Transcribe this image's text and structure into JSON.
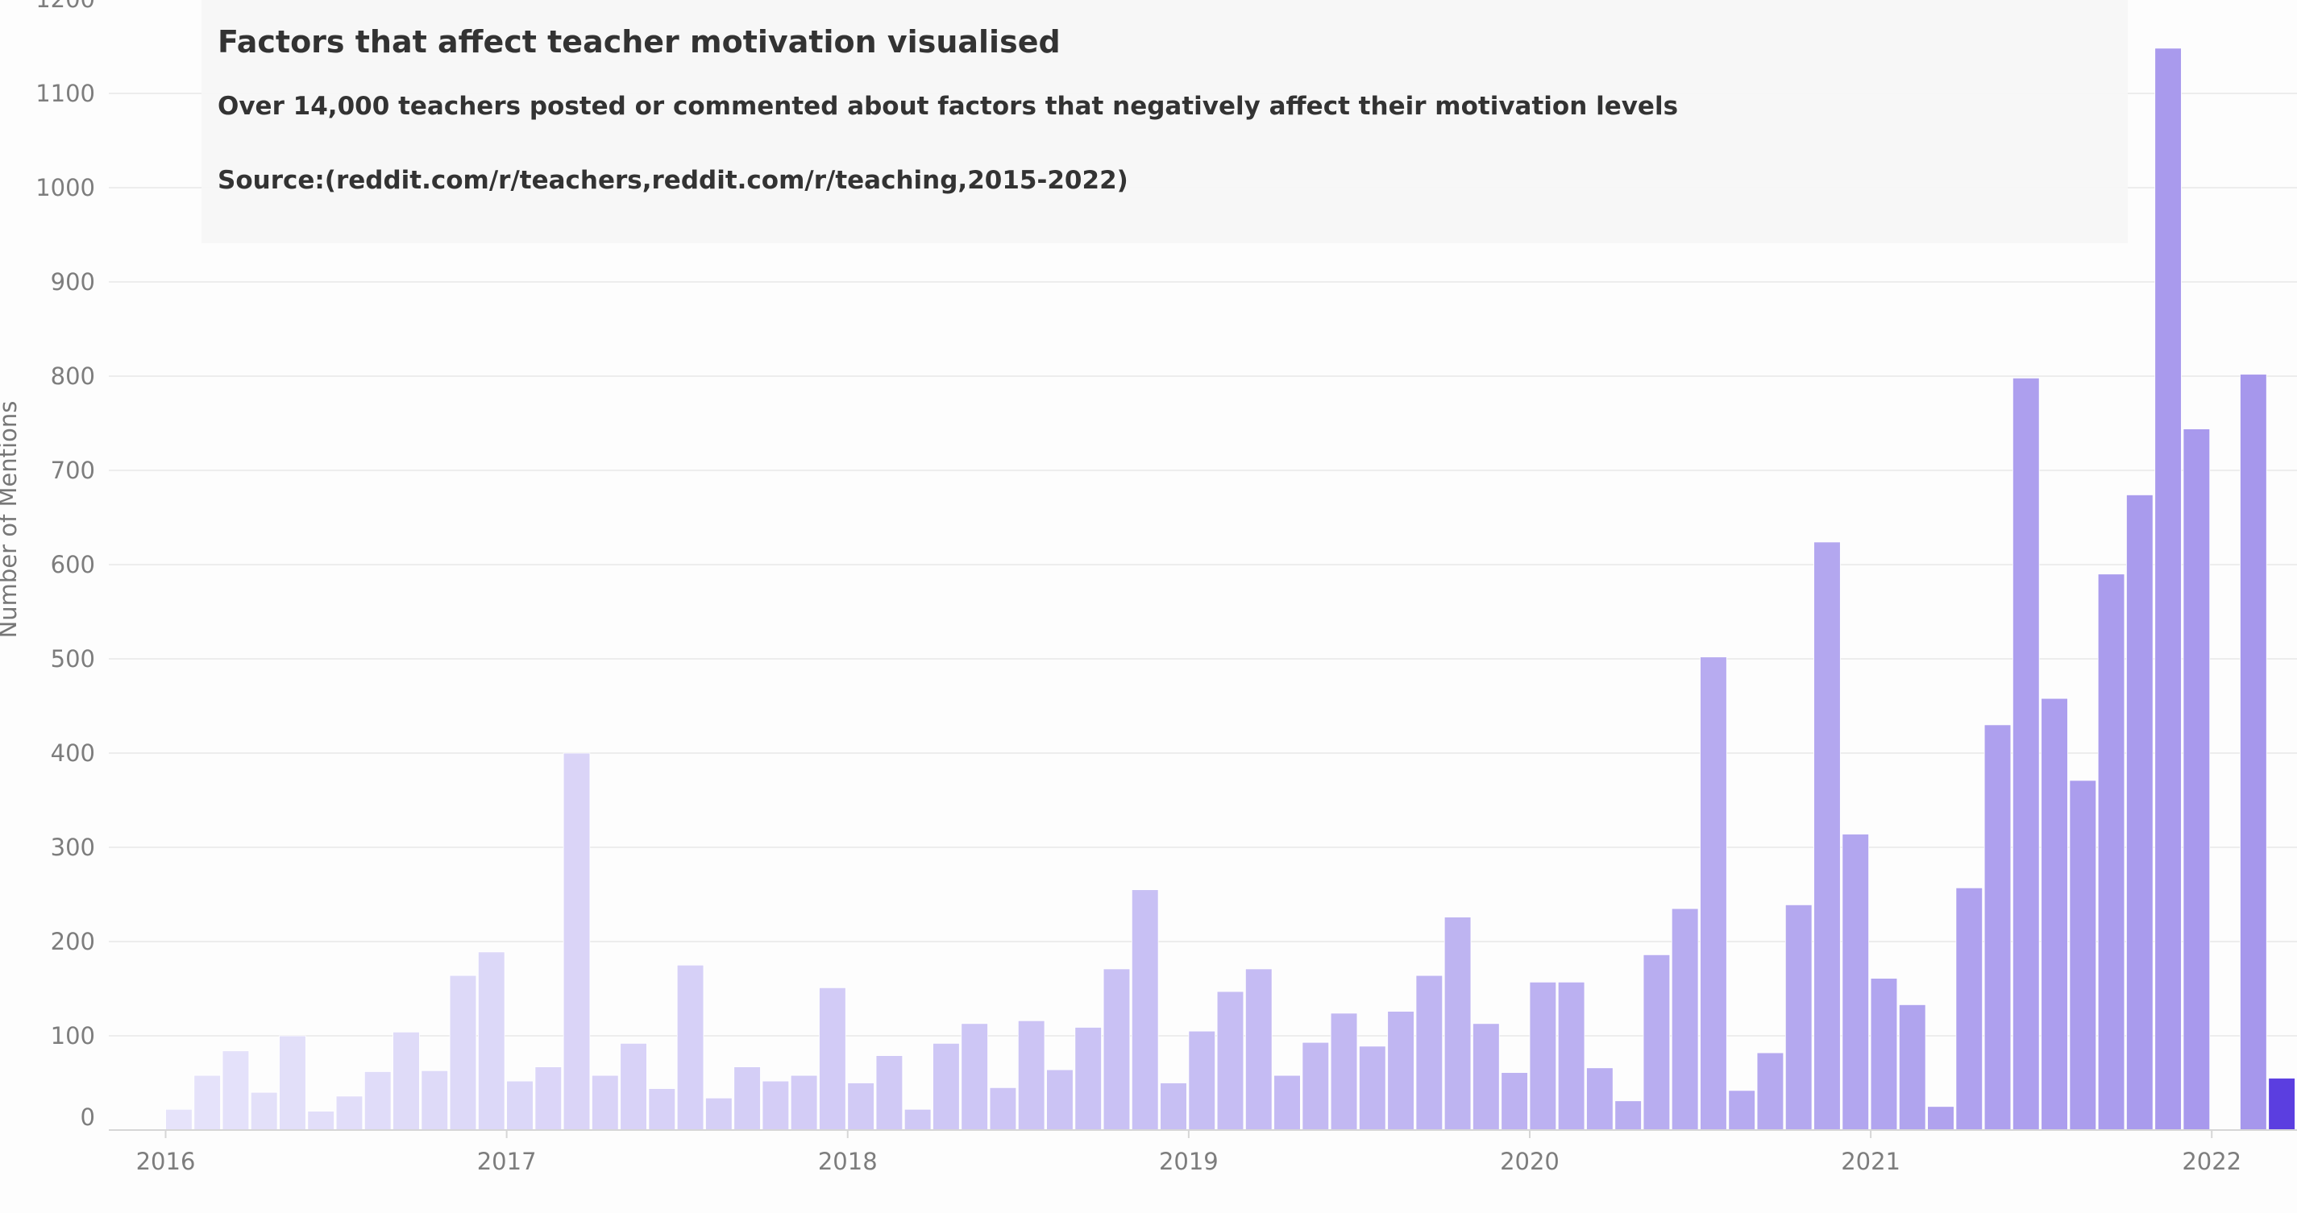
{
  "chart_data": {
    "type": "bar",
    "title": "Factors that affect teacher motivation visualised",
    "subtitle": "Over 14,000 teachers posted or commented about factors that negatively affect their motivation levels",
    "source": "Source:(reddit.com/r/teachers,reddit.com/r/teaching,2015-2022)",
    "ylabel": "Number of Mentions",
    "xlabel": "",
    "ylim": [
      0,
      1200
    ],
    "yticks": [
      0,
      100,
      200,
      300,
      400,
      500,
      600,
      700,
      800,
      900,
      1000,
      1100,
      1200
    ],
    "xticks": [
      "2016",
      "2017",
      "2018",
      "2019",
      "2020",
      "2021",
      "2022"
    ],
    "x_range": [
      "2015-11",
      "2022-04"
    ],
    "grid": true,
    "colors": {
      "bar_light": "#e6e3fa",
      "bar_dark": "#a596ec",
      "bar_highlight": "#5b3ee0",
      "grid": "#ededed",
      "axis": "#d6d6d6"
    },
    "bars": [
      {
        "month": "2016-01",
        "value": 22
      },
      {
        "month": "2016-02",
        "value": 58
      },
      {
        "month": "2016-03",
        "value": 84
      },
      {
        "month": "2016-04",
        "value": 40
      },
      {
        "month": "2016-05",
        "value": 100
      },
      {
        "month": "2016-06",
        "value": 20
      },
      {
        "month": "2016-07",
        "value": 36
      },
      {
        "month": "2016-08",
        "value": 62
      },
      {
        "month": "2016-09",
        "value": 104
      },
      {
        "month": "2016-10",
        "value": 63
      },
      {
        "month": "2016-11",
        "value": 164
      },
      {
        "month": "2016-12",
        "value": 189
      },
      {
        "month": "2017-01",
        "value": 52
      },
      {
        "month": "2017-02",
        "value": 67
      },
      {
        "month": "2017-03",
        "value": 400
      },
      {
        "month": "2017-04",
        "value": 58
      },
      {
        "month": "2017-05",
        "value": 92
      },
      {
        "month": "2017-06",
        "value": 44
      },
      {
        "month": "2017-07",
        "value": 175
      },
      {
        "month": "2017-08",
        "value": 34
      },
      {
        "month": "2017-09",
        "value": 67
      },
      {
        "month": "2017-10",
        "value": 52
      },
      {
        "month": "2017-11",
        "value": 58
      },
      {
        "month": "2017-12",
        "value": 151
      },
      {
        "month": "2018-01",
        "value": 50
      },
      {
        "month": "2018-02",
        "value": 79
      },
      {
        "month": "2018-03",
        "value": 22
      },
      {
        "month": "2018-04",
        "value": 92
      },
      {
        "month": "2018-05",
        "value": 113
      },
      {
        "month": "2018-06",
        "value": 45
      },
      {
        "month": "2018-07",
        "value": 116
      },
      {
        "month": "2018-08",
        "value": 64
      },
      {
        "month": "2018-09",
        "value": 109
      },
      {
        "month": "2018-10",
        "value": 171
      },
      {
        "month": "2018-11",
        "value": 255
      },
      {
        "month": "2018-12",
        "value": 50
      },
      {
        "month": "2019-01",
        "value": 105
      },
      {
        "month": "2019-02",
        "value": 147
      },
      {
        "month": "2019-03",
        "value": 171
      },
      {
        "month": "2019-04",
        "value": 58
      },
      {
        "month": "2019-05",
        "value": 93
      },
      {
        "month": "2019-06",
        "value": 124
      },
      {
        "month": "2019-07",
        "value": 89
      },
      {
        "month": "2019-08",
        "value": 126
      },
      {
        "month": "2019-09",
        "value": 164
      },
      {
        "month": "2019-10",
        "value": 226
      },
      {
        "month": "2019-11",
        "value": 113
      },
      {
        "month": "2019-12",
        "value": 61
      },
      {
        "month": "2020-01",
        "value": 157
      },
      {
        "month": "2020-02",
        "value": 157
      },
      {
        "month": "2020-03",
        "value": 66
      },
      {
        "month": "2020-04",
        "value": 31
      },
      {
        "month": "2020-05",
        "value": 186
      },
      {
        "month": "2020-06",
        "value": 235
      },
      {
        "month": "2020-07",
        "value": 502
      },
      {
        "month": "2020-08",
        "value": 42
      },
      {
        "month": "2020-09",
        "value": 82
      },
      {
        "month": "2020-10",
        "value": 239
      },
      {
        "month": "2020-11",
        "value": 624
      },
      {
        "month": "2020-12",
        "value": 314
      },
      {
        "month": "2021-01",
        "value": 161
      },
      {
        "month": "2021-02",
        "value": 133
      },
      {
        "month": "2021-03",
        "value": 25
      },
      {
        "month": "2021-04",
        "value": 257
      },
      {
        "month": "2021-05",
        "value": 430
      },
      {
        "month": "2021-06",
        "value": 798
      },
      {
        "month": "2021-07",
        "value": 458
      },
      {
        "month": "2021-08",
        "value": 371
      },
      {
        "month": "2021-09",
        "value": 590
      },
      {
        "month": "2021-10",
        "value": 674
      },
      {
        "month": "2021-11",
        "value": 1148
      },
      {
        "month": "2021-12",
        "value": 744
      },
      {
        "month": "2022-01",
        "value": 0
      },
      {
        "month": "2022-02",
        "value": 802
      },
      {
        "month": "2022-03",
        "value": 55,
        "highlight": true
      }
    ]
  }
}
